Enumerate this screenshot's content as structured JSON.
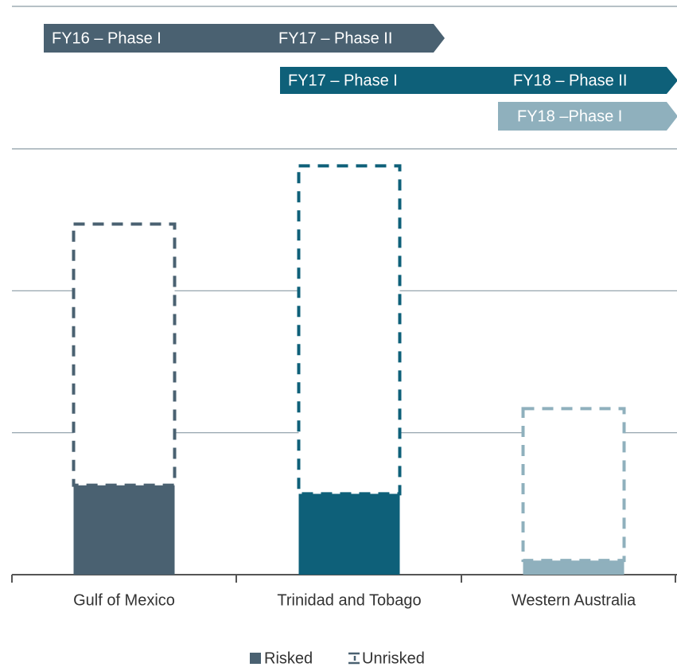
{
  "chart_data": {
    "type": "bar",
    "categories": [
      "Gulf of Mexico",
      "Trinidad and Tobago",
      "Western Australia"
    ],
    "colors": [
      "#4a6171",
      "#0e6079",
      "#8fb0bd"
    ],
    "series": [
      {
        "name": "Risked",
        "values": [
          0.63,
          0.57,
          0.1
        ]
      },
      {
        "name": "Unrisked",
        "values": [
          1.84,
          2.31,
          1.07
        ]
      }
    ],
    "ylim": [
      0,
      3
    ],
    "yticks": [
      0,
      1,
      2,
      3
    ],
    "grid": true,
    "phases": [
      {
        "labels": [
          "FY16 – Phase I",
          "FY17 – Phase II"
        ],
        "color": "#4a6171"
      },
      {
        "labels": [
          "FY17 – Phase I",
          "FY18 – Phase II"
        ],
        "color": "#0e6079"
      },
      {
        "labels": [
          "FY18 –Phase I"
        ],
        "color": "#8fb0bd"
      }
    ]
  }
}
